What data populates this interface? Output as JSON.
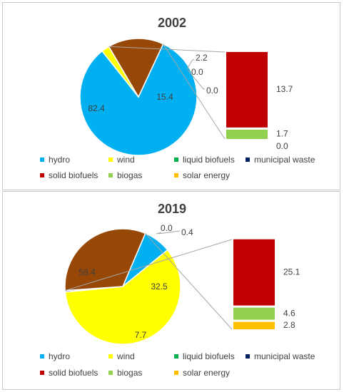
{
  "chart_data": [
    {
      "type": "pie",
      "title": "2002",
      "legend": [
        "hydro",
        "wind",
        "liquid biofuels",
        "municipal waste",
        "solid biofuels",
        "biogas",
        "solar energy"
      ],
      "legend_position": "bottom",
      "slices": [
        {
          "name": "hydro",
          "value": 82.4,
          "label": "82.4"
        },
        {
          "name": "wind",
          "value": 2.2,
          "label": "2.2"
        },
        {
          "name": "liquid biofuels",
          "value": 0.0,
          "label": "0.0"
        },
        {
          "name": "municipal waste",
          "value": 0.0,
          "label": "0.0"
        },
        {
          "name": "other (solid biofuels + biogas + solar energy)",
          "value": 15.4,
          "label": "15.4"
        }
      ],
      "breakdown": [
        {
          "name": "solid biofuels",
          "value": 13.7,
          "label": "13.7"
        },
        {
          "name": "biogas",
          "value": 1.7,
          "label": "1.7"
        },
        {
          "name": "solar energy",
          "value": 0.0,
          "label": "0.0"
        }
      ]
    },
    {
      "type": "pie",
      "title": "2019",
      "legend": [
        "hydro",
        "wind",
        "liquid biofuels",
        "municipal waste",
        "solid biofuels",
        "biogas",
        "solar energy"
      ],
      "legend_position": "bottom",
      "slices": [
        {
          "name": "hydro",
          "value": 7.7,
          "label": "7.7"
        },
        {
          "name": "wind",
          "value": 59.4,
          "label": "59.4"
        },
        {
          "name": "liquid biofuels",
          "value": 0.0,
          "label": "0.0"
        },
        {
          "name": "municipal waste",
          "value": 0.4,
          "label": "0.4"
        },
        {
          "name": "other (solid biofuels + biogas + solar energy)",
          "value": 32.5,
          "label": "32.5"
        }
      ],
      "breakdown": [
        {
          "name": "solid biofuels",
          "value": 25.1,
          "label": "25.1"
        },
        {
          "name": "biogas",
          "value": 4.6,
          "label": "4.6"
        },
        {
          "name": "solar energy",
          "value": 2.8,
          "label": "2.8"
        }
      ]
    }
  ],
  "colors": {
    "hydro": "#00b0f0",
    "wind": "#ffff00",
    "liquid biofuels": "#00b050",
    "municipal waste": "#002060",
    "solid biofuels": "#c00000",
    "biogas": "#92d050",
    "solar energy": "#ffc000",
    "other": "#974706",
    "connector": "#a6a6a6"
  }
}
